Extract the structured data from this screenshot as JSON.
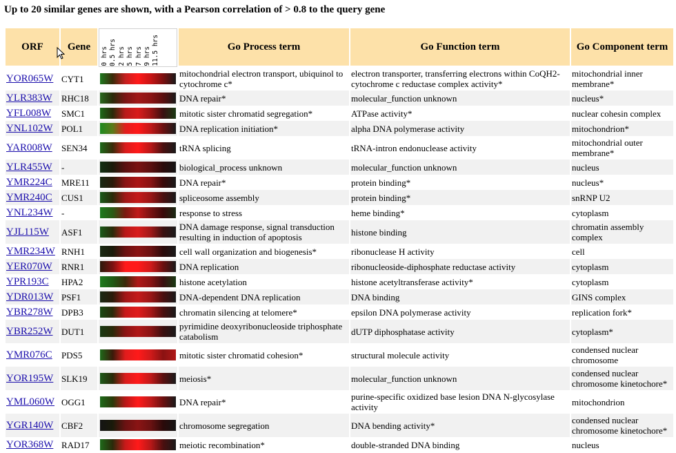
{
  "heading": "Up to 20 similar genes are shown, with a Pearson correlation of > 0.8 to the query gene",
  "columns": {
    "orf": "ORF",
    "gene": "Gene",
    "process": "Go Process term",
    "function": "Go Function term",
    "component": "Go Component term"
  },
  "timepoints": [
    "0 hrs",
    "0.5 hrs",
    "2 hrs",
    "5 hrs",
    "7 hrs",
    "9 hrs",
    "11.5 hrs"
  ],
  "rows": [
    {
      "orf": "YOR065W",
      "gene": "CYT1",
      "process": "mitochondrial electron transport, ubiquinol to cytochrome c*",
      "function": "electron transporter, transferring electrons within CoQH2-cytochrome c reductase complex activity*",
      "component": "mitochondrial inner membrane*",
      "heat": [
        "#1f7a1f",
        "#3b2a0a",
        "#c42020",
        "#ff1a1a",
        "#c81515",
        "#7a1010",
        "#1a1a1a"
      ]
    },
    {
      "orf": "YLR383W",
      "gene": "RHC18",
      "process": "DNA repair*",
      "function": "molecular_function unknown",
      "component": "nucleus*",
      "heat": [
        "#2a6a1f",
        "#2a2a0a",
        "#7a1515",
        "#a01818",
        "#8a1414",
        "#5a0f0f",
        "#1a1a1a"
      ]
    },
    {
      "orf": "YFL008W",
      "gene": "SMC1",
      "process": "mitotic sister chromatid segregation*",
      "function": "ATPase activity*",
      "component": "nuclear cohesin complex",
      "heat": [
        "#1e6a1a",
        "#2a2a0a",
        "#b81b1b",
        "#d81c1c",
        "#9a1515",
        "#3a1010",
        "#1a3a14"
      ]
    },
    {
      "orf": "YNL102W",
      "gene": "POL1",
      "process": "DNA replication initiation*",
      "function": "alpha DNA polymerase activity",
      "component": "mitochondrion*",
      "heat": [
        "#1e8a1e",
        "#5a7a1a",
        "#e01e1e",
        "#ff1818",
        "#c01818",
        "#6a1010",
        "#1a1a1a"
      ]
    },
    {
      "orf": "YAR008W",
      "gene": "SEN34",
      "process": "tRNA splicing",
      "function": "tRNA-intron endonuclease activity",
      "component": "mitochondrial outer membrane*",
      "heat": [
        "#1e6a1a",
        "#3a2a0a",
        "#d81c1c",
        "#ff1a1a",
        "#b81818",
        "#4a1010",
        "#1a1a1a"
      ]
    },
    {
      "orf": "YLR455W",
      "gene": "-",
      "process": "biological_process unknown",
      "function": "molecular_function unknown",
      "component": "nucleus",
      "heat": [
        "#123012",
        "#1a1a0a",
        "#5a1010",
        "#7a1212",
        "#5a1010",
        "#2a0a0a",
        "#141414"
      ]
    },
    {
      "orf": "YMR224C",
      "gene": "MRE11",
      "process": "DNA repair*",
      "function": "protein binding*",
      "component": "nucleus*",
      "heat": [
        "#1a2a14",
        "#2a1a0a",
        "#8a1414",
        "#aa1616",
        "#8a1414",
        "#3a0a0a",
        "#1a1a1a"
      ]
    },
    {
      "orf": "YMR240C",
      "gene": "CUS1",
      "process": "spliceosome assembly",
      "function": "protein binding*",
      "component": "snRNP U2",
      "heat": [
        "#1a5a1a",
        "#2a2a0a",
        "#a01818",
        "#c41a1a",
        "#9a1616",
        "#4a0f0f",
        "#1a1a1a"
      ]
    },
    {
      "orf": "YNL234W",
      "gene": "-",
      "process": "response to stress",
      "function": "heme binding*",
      "component": "cytoplasm",
      "heat": [
        "#1e7a1e",
        "#2a5a14",
        "#7a1a10",
        "#c01a1a",
        "#7a1212",
        "#3a0a0a",
        "#1a2a14"
      ]
    },
    {
      "orf": "YJL115W",
      "gene": "ASF1",
      "process": "DNA damage response, signal transduction resulting in induction of apoptosis",
      "function": "histone binding",
      "component": "chromatin assembly complex",
      "heat": [
        "#1a5a1a",
        "#2a2a0a",
        "#b81818",
        "#d81c1c",
        "#a01818",
        "#3a1010",
        "#1a1a1a"
      ]
    },
    {
      "orf": "YMR234W",
      "gene": "RNH1",
      "process": "cell wall organization and biogenesis*",
      "function": "ribonuclease H activity",
      "component": "cell",
      "heat": [
        "#1a2a14",
        "#1a1a0a",
        "#6a1212",
        "#8a1414",
        "#6a1212",
        "#2a0a0a",
        "#1a1a1a"
      ]
    },
    {
      "orf": "YER070W",
      "gene": "RNR1",
      "process": "DNA replication",
      "function": "ribonucleoside-diphosphate reductase activity",
      "component": "cytoplasm",
      "heat": [
        "#2a1a0a",
        "#7a1212",
        "#ff1a1a",
        "#ff1a1a",
        "#d01a1a",
        "#6a1010",
        "#1a1a1a"
      ]
    },
    {
      "orf": "YPR193C",
      "gene": "HPA2",
      "process": "histone acetylation",
      "function": "histone acetyltransferase activity*",
      "component": "cytoplasm",
      "heat": [
        "#1e7a1e",
        "#1e5a14",
        "#3a2a0a",
        "#b01818",
        "#8a1414",
        "#3a1010",
        "#1a3a14"
      ]
    },
    {
      "orf": "YDR013W",
      "gene": "PSF1",
      "process": "DNA-dependent DNA replication",
      "function": "DNA binding",
      "component": "GINS complex",
      "heat": [
        "#1a2a14",
        "#2a1a0a",
        "#a01616",
        "#c41a1a",
        "#9a1616",
        "#4a0f0f",
        "#1a1a1a"
      ]
    },
    {
      "orf": "YBR278W",
      "gene": "DPB3",
      "process": "chromatin silencing at telomere*",
      "function": "epsilon DNA polymerase activity",
      "component": "replication fork*",
      "heat": [
        "#1a4a14",
        "#2a2a0a",
        "#c81a1a",
        "#e01c1c",
        "#a81818",
        "#4a0f0f",
        "#1a1a1a"
      ]
    },
    {
      "orf": "YBR252W",
      "gene": "DUT1",
      "process": "pyrimidine deoxyribonucleoside triphosphate catabolism",
      "function": "dUTP diphosphatase activity",
      "component": "cytoplasm*",
      "heat": [
        "#1a3a14",
        "#2a2a0a",
        "#8a1414",
        "#b01818",
        "#8a1414",
        "#3a0f0f",
        "#1a1a1a"
      ]
    },
    {
      "orf": "YMR076C",
      "gene": "PDS5",
      "process": "mitotic sister chromatid cohesion*",
      "function": "structural molecule activity",
      "component": "condensed nuclear chromosome",
      "heat": [
        "#1e6a1a",
        "#3a1a0a",
        "#e01c1c",
        "#ff1a1a",
        "#d01a1a",
        "#8a1212",
        "#b01818"
      ]
    },
    {
      "orf": "YOR195W",
      "gene": "SLK19",
      "process": "meiosis*",
      "function": "molecular_function unknown",
      "component": "condensed nuclear chromosome kinetochore*",
      "heat": [
        "#1e5a1a",
        "#2a2a0a",
        "#d81c1c",
        "#ff1a1a",
        "#c01a1a",
        "#5a1010",
        "#1a1a1a"
      ]
    },
    {
      "orf": "YML060W",
      "gene": "OGG1",
      "process": "DNA repair*",
      "function": "purine-specific oxidized base lesion DNA N-glycosylase activity",
      "component": "mitochondrion",
      "heat": [
        "#1e6a1a",
        "#2a3a0a",
        "#b81818",
        "#ff1a1a",
        "#c01a1a",
        "#6a1010",
        "#1a1a1a"
      ]
    },
    {
      "orf": "YGR140W",
      "gene": "CBF2",
      "process": "chromosome segregation",
      "function": "DNA bending activity*",
      "component": "condensed nuclear chromosome kinetochore*",
      "heat": [
        "#141414",
        "#1a1a0a",
        "#6a1212",
        "#8a1414",
        "#6a1212",
        "#2a0a0a",
        "#141414"
      ]
    },
    {
      "orf": "YOR368W",
      "gene": "RAD17",
      "process": "meiotic recombination*",
      "function": "double-stranded DNA binding",
      "component": "nucleus",
      "heat": [
        "#1e6a1a",
        "#2a2a0a",
        "#c81a1a",
        "#ff1a1a",
        "#b81818",
        "#4a0f0f",
        "#1a1a1a"
      ]
    }
  ]
}
